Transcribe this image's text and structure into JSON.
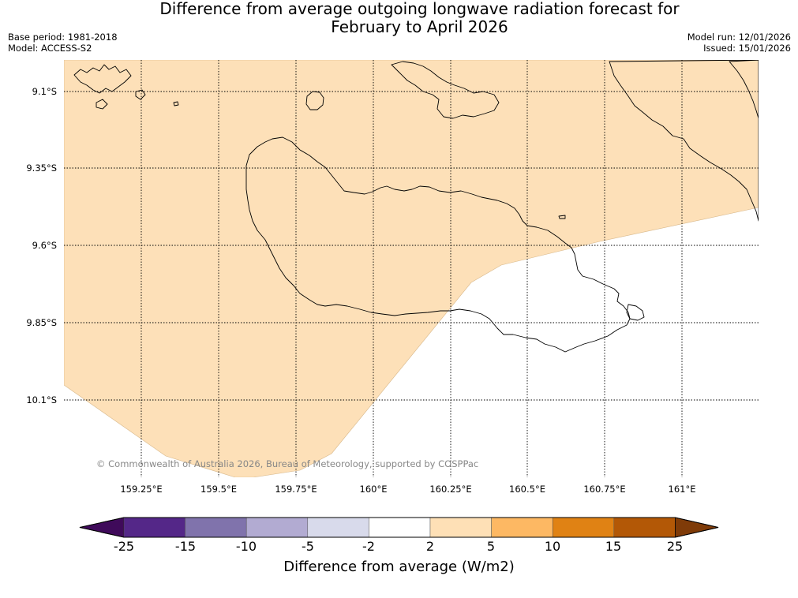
{
  "title": {
    "line1": "Difference from average outgoing longwave radiation forecast for",
    "line2": "February to April 2026"
  },
  "meta": {
    "base_period": "Base period: 1981-2018",
    "model": "Model: ACCESS-S2",
    "model_run": "Model run: 12/01/2026",
    "issued": "Issued: 15/01/2026"
  },
  "map": {
    "latitude_labels": [
      "9.1°S",
      "9.35°S",
      "9.6°S",
      "9.85°S",
      "10.1°S"
    ],
    "longitude_labels": [
      "159.25°E",
      "159.5°E",
      "159.75°E",
      "160°E",
      "160.25°E",
      "160.5°E",
      "160.75°E",
      "161°E"
    ],
    "copyright": "© Commonwealth of Australia 2026, Bureau of Meteorology, supported by COSPPac",
    "anomaly_region_band": "2 to 5",
    "colors": {
      "anomaly_fill": "#fde0b8",
      "coastline": "#000000",
      "gridline": "#000000"
    }
  },
  "colorbar": {
    "title": "Difference from average (W/m2)",
    "tick_labels": [
      "-25",
      "-15",
      "-10",
      "-5",
      "-2",
      "2",
      "5",
      "10",
      "15",
      "25"
    ],
    "colors": [
      "#3f0a5a",
      "#542788",
      "#8073ac",
      "#b2abd2",
      "#d8daeb",
      "#ffffff",
      "#fee0b6",
      "#fdb863",
      "#e08214",
      "#b35806",
      "#7f3b08"
    ]
  }
}
